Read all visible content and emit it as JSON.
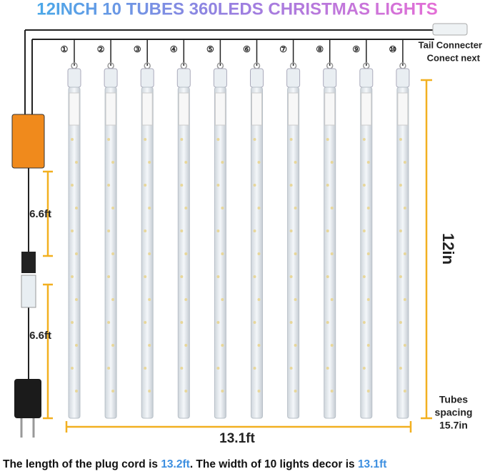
{
  "header": {
    "title": "12INCH 10 TUBES 360LEDS CHRISTMAS LIGHTS"
  },
  "tubes": {
    "labels": [
      "①",
      "②",
      "③",
      "④",
      "⑤",
      "⑥",
      "⑦",
      "⑧",
      "⑨",
      "⑩"
    ]
  },
  "tail_connector": {
    "lines": [
      "Tail Connecter",
      "Conect next"
    ]
  },
  "dimensions": {
    "tube_length": "12in",
    "cord_segments": [
      "6.6ft",
      "6.6ft"
    ],
    "width": "13.1ft",
    "spacing": [
      "Tubes",
      "spacing",
      "15.7in"
    ]
  },
  "footer": {
    "parts": [
      "The length of the plug cord is ",
      "13.2ft",
      ". The width of 10 lights decor is ",
      "13.1ft"
    ]
  }
}
